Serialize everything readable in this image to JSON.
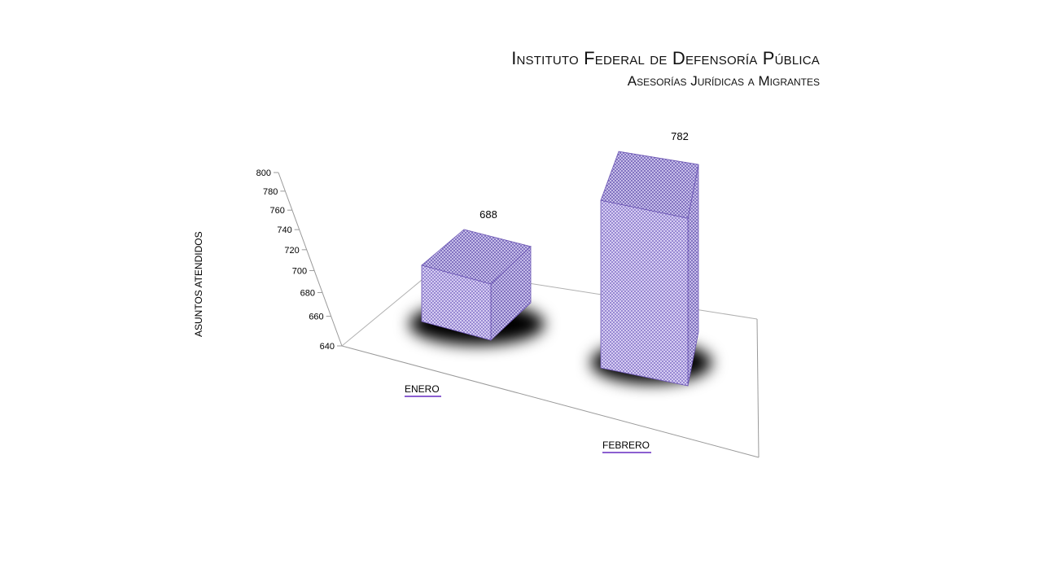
{
  "title": {
    "line1": "Instituto Federal de Defensoría Pública",
    "line2": "Asesorías Jurídicas a Migrantes"
  },
  "colors": {
    "bar_fill": "#8a78c8",
    "bar_top": "#7c6bbd",
    "bar_side": "#6a59a8",
    "axis": "#9a9a9a",
    "category_underline": "#8b5fd0"
  },
  "chart_data": {
    "type": "bar",
    "categories": [
      "ENERO",
      "FEBRERO"
    ],
    "values": [
      688,
      782
    ],
    "data_labels": [
      "688",
      "782"
    ],
    "ylabel": "ASUNTOS ATENDIDOS",
    "ylim": [
      640,
      800
    ],
    "yticks": [
      "640",
      "660",
      "680",
      "700",
      "720",
      "740",
      "760",
      "780",
      "800"
    ],
    "style": "3d-perspective"
  }
}
